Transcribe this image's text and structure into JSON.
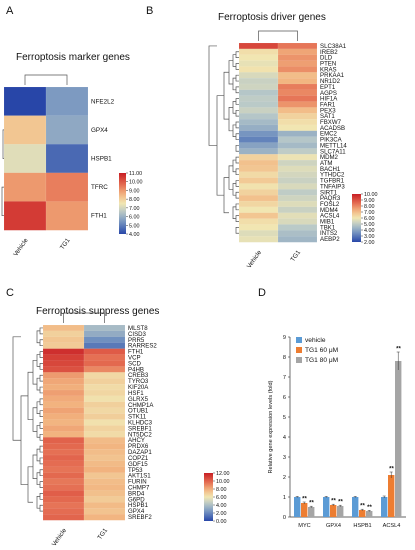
{
  "panels": {
    "A": {
      "letter": "A",
      "title": "Ferroptosis marker genes",
      "columns": [
        "Vehicle",
        "TG1"
      ],
      "genes": [
        "NFE2L2",
        "GPX4",
        "HSPB1",
        "TFRC",
        "FTH1"
      ],
      "values": [
        [
          3.2,
          5.5
        ],
        [
          8.2,
          5.8
        ],
        [
          7.2,
          4.6
        ],
        [
          9.0,
          9.4
        ],
        [
          10.5,
          9.0
        ]
      ],
      "scale": {
        "min": 4.0,
        "max": 11.0,
        "ticks": [
          "11.00",
          "10.00",
          "9.00",
          "8.00",
          "7.00",
          "6.00",
          "5.00",
          "4.00"
        ]
      }
    },
    "B": {
      "letter": "B",
      "title": "Ferroptosis driver genes",
      "columns": [
        "Vehicle",
        "TG1"
      ],
      "genes": [
        "SLC38A1",
        "IREB2",
        "DLD",
        "PTEN",
        "KRAS",
        "PRKAA1",
        "NR1D2",
        "EPT1",
        "AGPS",
        "HIF1A",
        "FAR1",
        "PEX3",
        "SAT1",
        "FBXW7",
        "ACADSB",
        "EMC2",
        "PIK3CA",
        "METTL14",
        "SLC7A11",
        "MDM2",
        "ATM",
        "BACH1",
        "YTHDC2",
        "TGFBR1",
        "TNFAIP3",
        "SIRT1",
        "PAQR3",
        "FOSL2",
        "MDM4",
        "ACSL4",
        "MIB1",
        "TBK1",
        "INTS2",
        "AEBP2"
      ],
      "values": [
        [
          9.2,
          8.3
        ],
        [
          6.2,
          7.5
        ],
        [
          6.0,
          7.8
        ],
        [
          5.8,
          7.6
        ],
        [
          6.1,
          7.9
        ],
        [
          5.5,
          7.0
        ],
        [
          5.2,
          7.2
        ],
        [
          5.3,
          8.2
        ],
        [
          4.8,
          8.0
        ],
        [
          5.0,
          8.3
        ],
        [
          4.9,
          7.8
        ],
        [
          5.2,
          7.0
        ],
        [
          4.8,
          6.5
        ],
        [
          4.5,
          6.2
        ],
        [
          4.2,
          6.0
        ],
        [
          3.6,
          4.3
        ],
        [
          3.2,
          4.8
        ],
        [
          3.9,
          4.5
        ],
        [
          4.3,
          5.0
        ],
        [
          6.5,
          5.9
        ],
        [
          6.9,
          5.3
        ],
        [
          6.8,
          5.6
        ],
        [
          6.3,
          5.4
        ],
        [
          6.7,
          5.2
        ],
        [
          6.1,
          5.5
        ],
        [
          6.5,
          5.0
        ],
        [
          6.9,
          5.3
        ],
        [
          6.4,
          5.6
        ],
        [
          6.0,
          5.2
        ],
        [
          6.8,
          5.7
        ],
        [
          6.2,
          5.5
        ],
        [
          6.0,
          4.9
        ],
        [
          5.6,
          4.6
        ],
        [
          5.8,
          4.4
        ]
      ],
      "scale": {
        "min": 2.0,
        "max": 10.0,
        "ticks": [
          "10.00",
          "9.00",
          "8.00",
          "7.00",
          "6.00",
          "5.00",
          "4.00",
          "3.00",
          "2.00"
        ]
      }
    },
    "C": {
      "letter": "C",
      "title": "Ferroptosis suppress genes",
      "columns": [
        "Vehicle",
        "TG1"
      ],
      "genes": [
        "MLST8",
        "CISD3",
        "PRR5",
        "RARRES2",
        "FTH1",
        "VCP",
        "SCD",
        "P4HB",
        "CREB3",
        "TYRO3",
        "KIF20A",
        "HSF1",
        "GLRX5",
        "CHMP1A",
        "OTUB1",
        "STK11",
        "KLHDC3",
        "SREBF1",
        "NT5DC2",
        "AHCY",
        "PRDX6",
        "DAZAP1",
        "COPZ1",
        "GDF15",
        "TP53",
        "AKT1S1",
        "FURIN",
        "CHMP7",
        "BRD4",
        "G6PD",
        "HSPB1",
        "GPX4",
        "SREBF2"
      ],
      "values": [
        [
          7.5,
          3.8
        ],
        [
          6.8,
          3.2
        ],
        [
          7.2,
          2.2
        ],
        [
          7.0,
          1.5
        ],
        [
          11.5,
          10.2
        ],
        [
          11.0,
          9.6
        ],
        [
          10.8,
          9.8
        ],
        [
          10.5,
          9.0
        ],
        [
          8.5,
          6.5
        ],
        [
          8.2,
          6.8
        ],
        [
          8.0,
          6.4
        ],
        [
          8.4,
          6.6
        ],
        [
          8.1,
          6.2
        ],
        [
          7.9,
          6.8
        ],
        [
          8.3,
          6.5
        ],
        [
          8.0,
          6.9
        ],
        [
          7.8,
          6.2
        ],
        [
          8.2,
          6.7
        ],
        [
          7.9,
          6.4
        ],
        [
          10.0,
          7.6
        ],
        [
          9.8,
          7.8
        ],
        [
          9.6,
          7.5
        ],
        [
          9.9,
          7.3
        ],
        [
          9.7,
          7.6
        ],
        [
          9.5,
          7.9
        ],
        [
          9.8,
          7.2
        ],
        [
          9.4,
          7.5
        ],
        [
          9.6,
          7.7
        ],
        [
          10.1,
          7.4
        ],
        [
          9.8,
          7.0
        ],
        [
          9.5,
          7.6
        ],
        [
          9.7,
          7.3
        ],
        [
          9.9,
          7.8
        ]
      ],
      "scale": {
        "min": 0.0,
        "max": 12.0,
        "ticks": [
          "12.00",
          "10.00",
          "8.00",
          "6.00",
          "4.00",
          "2.00",
          "0.00"
        ]
      }
    }
  },
  "chart_data": {
    "type": "bar",
    "letter": "D",
    "categories": [
      "MYC",
      "GPX4",
      "HSPB1",
      "ACSL4"
    ],
    "series": [
      {
        "name": "vehicle",
        "color": "#5b9bd5",
        "values": [
          1.0,
          1.0,
          1.0,
          1.0
        ],
        "errors": [
          0.03,
          0.03,
          0.03,
          0.05
        ]
      },
      {
        "name": "TG1 60 μM",
        "color": "#ed7d31",
        "values": [
          0.7,
          0.6,
          0.35,
          2.1
        ],
        "errors": [
          0.05,
          0.04,
          0.04,
          0.15
        ]
      },
      {
        "name": "TG1 80 μM",
        "color": "#a5a5a5",
        "values": [
          0.5,
          0.55,
          0.3,
          7.8
        ],
        "errors": [
          0.04,
          0.04,
          0.03,
          0.45
        ]
      }
    ],
    "significance": [
      {
        "category": "MYC",
        "series": [
          "TG1 60 μM",
          "TG1 80 μM"
        ],
        "label": "**"
      },
      {
        "category": "GPX4",
        "series": [
          "TG1 60 μM",
          "TG1 80 μM"
        ],
        "label": "**"
      },
      {
        "category": "HSPB1",
        "series": [
          "TG1 60 μM",
          "TG1 80 μM"
        ],
        "label": "**"
      },
      {
        "category": "ACSL4",
        "series": [
          "TG1 60 μM",
          "TG1 80 μM"
        ],
        "label": "**"
      }
    ],
    "ylabel": "Relative gene expression levels (fold)",
    "ylim": [
      0,
      9
    ],
    "yticks": [
      0,
      1,
      2,
      3,
      4,
      5,
      6,
      7,
      8,
      9
    ],
    "legend": "top-left"
  }
}
